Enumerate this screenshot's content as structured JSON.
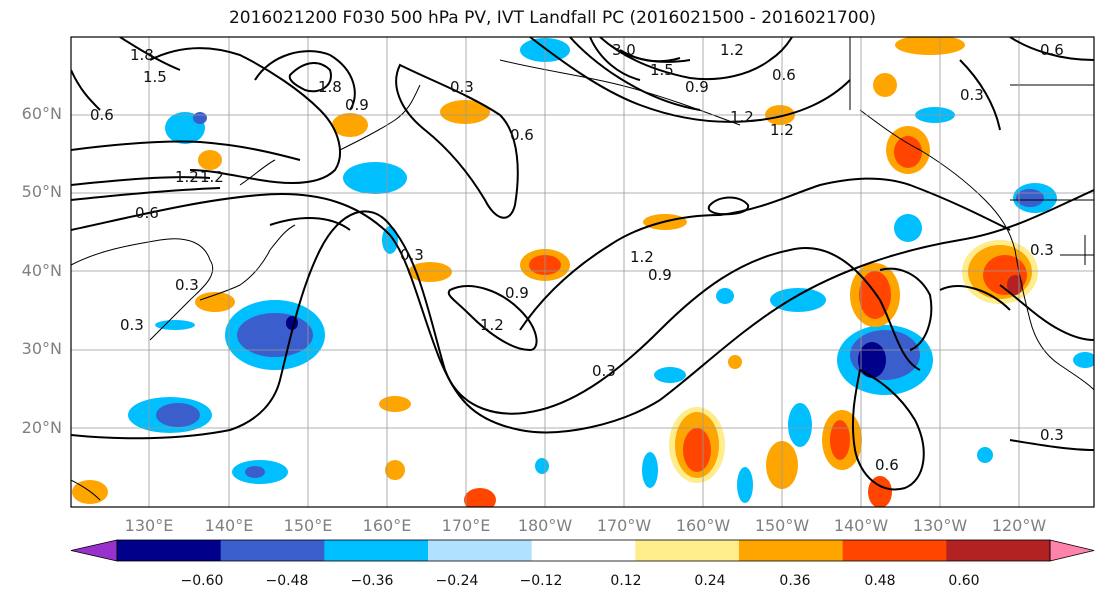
{
  "title": "2016021200 F030 500 hPa PV, IVT Landfall PC (2016021500 - 2016021700)",
  "lat_labels": [
    "60°N",
    "50°N",
    "40°N",
    "30°N",
    "20°N"
  ],
  "lon_labels": [
    "130°E",
    "140°E",
    "150°E",
    "160°E",
    "170°E",
    "180°W",
    "170°W",
    "160°W",
    "150°W",
    "140°W",
    "130°W",
    "120°W"
  ],
  "colorbar": {
    "ticks": [
      "−0.60",
      "−0.48",
      "−0.36",
      "−0.24",
      "−0.12",
      "0.12",
      "0.24",
      "0.36",
      "0.48",
      "0.60"
    ],
    "colors": [
      "#9932cc",
      "#00008b",
      "#3a5fcd",
      "#00bfff",
      "#b0e2ff",
      "#ffffff",
      "#ffec8b",
      "#ffa500",
      "#ff4500",
      "#b22222",
      "#ff82ab"
    ]
  },
  "contour_labels": [
    "1.8",
    "1.5",
    "1.2",
    "1.8",
    "0.9",
    "0.6",
    "0.3",
    "1.2",
    "1.2",
    "0.6",
    "0.3",
    "0.3",
    "0.9",
    "1.2",
    "0.3",
    "0.9",
    "1.2",
    "0.6",
    "0.9",
    "1.2",
    "0.3",
    "0.6",
    "0.3",
    "0.6",
    "0.3",
    "1.2",
    "1.5",
    "3.0",
    "0.3",
    "0.6"
  ],
  "shading_colors": {
    "neg_light": "#b0e2ff",
    "neg_mid": "#00bfff",
    "neg_strong": "#3a5fcd",
    "neg_max": "#00008b",
    "pos_light": "#ffec8b",
    "pos_mid": "#ffa500",
    "pos_strong": "#ff4500",
    "pos_max": "#b22222"
  }
}
